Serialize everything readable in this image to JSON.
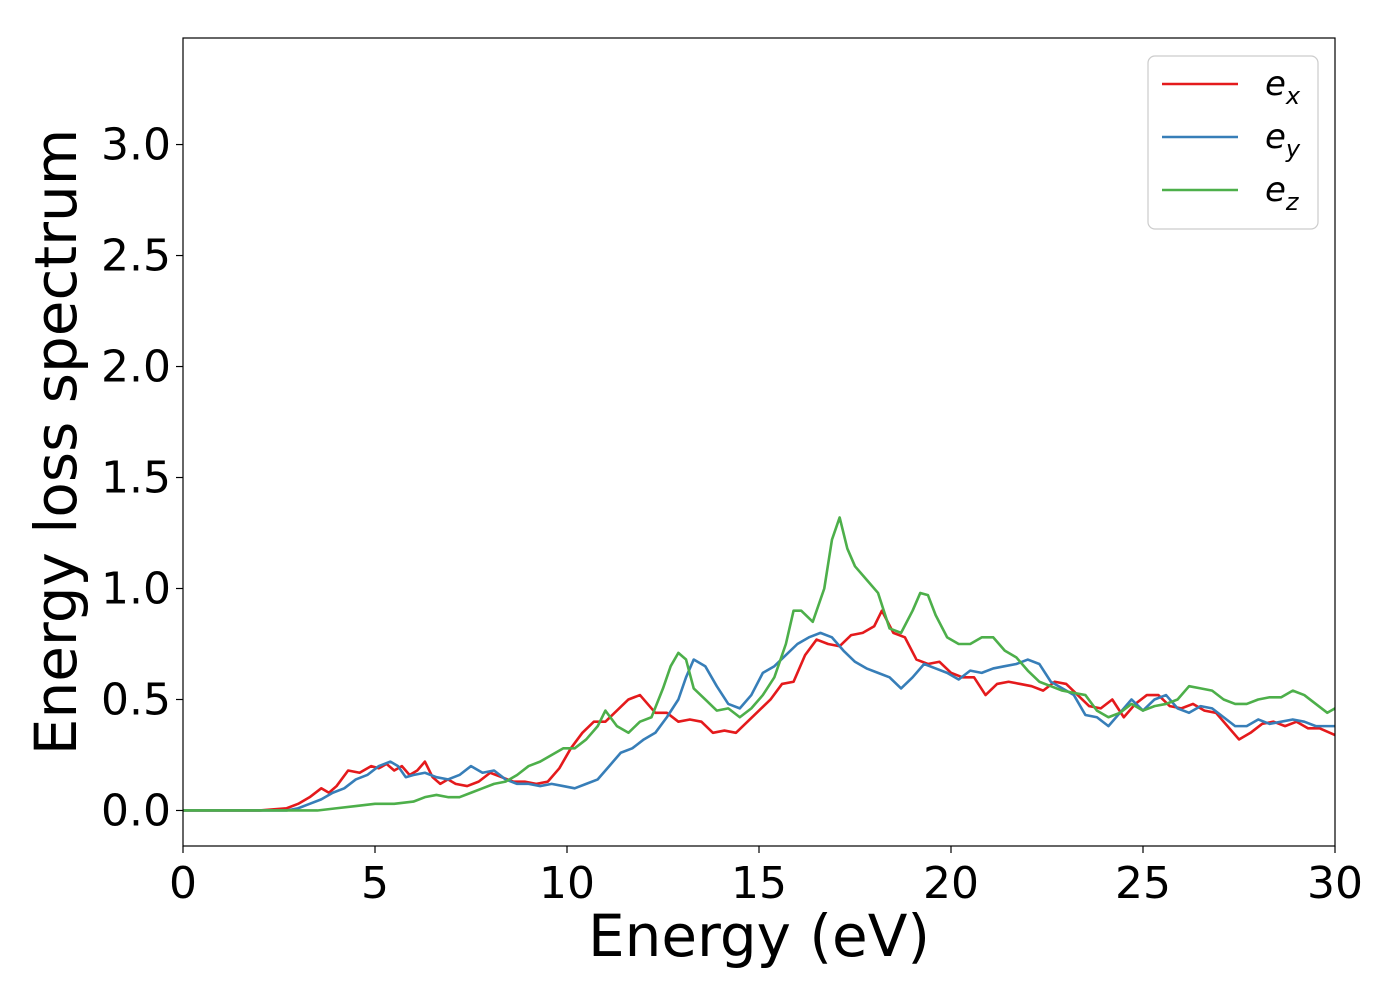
{
  "chart_data": {
    "type": "line",
    "title": "",
    "xlabel": "Energy (eV)",
    "ylabel": "Energy loss spectrum",
    "xlim": [
      0,
      30
    ],
    "ylim": [
      -0.16,
      3.48
    ],
    "xticks": [
      0,
      5,
      10,
      15,
      20,
      25,
      30
    ],
    "xtick_labels": [
      "0",
      "5",
      "10",
      "15",
      "20",
      "25",
      "30"
    ],
    "yticks": [
      0.0,
      0.5,
      1.0,
      1.5,
      2.0,
      2.5,
      3.0
    ],
    "ytick_labels": [
      "0.0",
      "0.5",
      "1.0",
      "1.5",
      "2.0",
      "2.5",
      "3.0"
    ],
    "grid": false,
    "legend_position": "top-right",
    "series": [
      {
        "name_base": "e",
        "name_sub": "x",
        "color": "#e41a1c",
        "x": [
          0,
          1,
          2,
          2.7,
          3.0,
          3.3,
          3.6,
          3.8,
          4.0,
          4.3,
          4.6,
          4.9,
          5.1,
          5.3,
          5.5,
          5.7,
          5.9,
          6.1,
          6.3,
          6.5,
          6.7,
          6.9,
          7.1,
          7.4,
          7.7,
          8.0,
          8.3,
          8.6,
          8.9,
          9.2,
          9.5,
          9.8,
          10.1,
          10.4,
          10.7,
          11.0,
          11.3,
          11.6,
          11.9,
          12.1,
          12.3,
          12.6,
          12.9,
          13.2,
          13.5,
          13.8,
          14.1,
          14.4,
          14.7,
          15.0,
          15.3,
          15.6,
          15.9,
          16.2,
          16.5,
          16.8,
          17.1,
          17.4,
          17.7,
          18.0,
          18.2,
          18.5,
          18.8,
          19.1,
          19.4,
          19.7,
          20.0,
          20.3,
          20.6,
          20.9,
          21.2,
          21.5,
          21.8,
          22.1,
          22.4,
          22.7,
          23.0,
          23.3,
          23.6,
          23.9,
          24.2,
          24.5,
          24.8,
          25.1,
          25.4,
          25.7,
          26.0,
          26.3,
          26.6,
          26.9,
          27.2,
          27.5,
          27.8,
          28.1,
          28.4,
          28.7,
          29.0,
          29.3,
          29.6,
          30.0
        ],
        "y": [
          0.0,
          0.0,
          0.0,
          0.01,
          0.03,
          0.06,
          0.1,
          0.08,
          0.11,
          0.18,
          0.17,
          0.2,
          0.19,
          0.21,
          0.18,
          0.2,
          0.16,
          0.18,
          0.22,
          0.15,
          0.12,
          0.14,
          0.12,
          0.11,
          0.13,
          0.17,
          0.15,
          0.13,
          0.13,
          0.12,
          0.13,
          0.19,
          0.28,
          0.35,
          0.4,
          0.4,
          0.45,
          0.5,
          0.52,
          0.48,
          0.44,
          0.44,
          0.4,
          0.41,
          0.4,
          0.35,
          0.36,
          0.35,
          0.4,
          0.45,
          0.5,
          0.57,
          0.58,
          0.7,
          0.77,
          0.75,
          0.74,
          0.79,
          0.8,
          0.83,
          0.9,
          0.8,
          0.78,
          0.68,
          0.66,
          0.67,
          0.62,
          0.6,
          0.6,
          0.52,
          0.57,
          0.58,
          0.57,
          0.56,
          0.54,
          0.58,
          0.57,
          0.52,
          0.47,
          0.46,
          0.5,
          0.42,
          0.48,
          0.52,
          0.52,
          0.47,
          0.46,
          0.48,
          0.45,
          0.44,
          0.38,
          0.32,
          0.35,
          0.39,
          0.4,
          0.38,
          0.4,
          0.37,
          0.37,
          0.34
        ]
      },
      {
        "name_base": "e",
        "name_sub": "y",
        "color": "#377eb8",
        "x": [
          0,
          1,
          2,
          2.7,
          3.0,
          3.3,
          3.6,
          3.9,
          4.2,
          4.5,
          4.8,
          5.1,
          5.4,
          5.6,
          5.8,
          6.0,
          6.3,
          6.6,
          6.9,
          7.2,
          7.5,
          7.8,
          8.1,
          8.4,
          8.7,
          9.0,
          9.3,
          9.6,
          9.9,
          10.2,
          10.5,
          10.8,
          11.1,
          11.4,
          11.7,
          12.0,
          12.3,
          12.6,
          12.9,
          13.1,
          13.3,
          13.6,
          13.9,
          14.2,
          14.5,
          14.8,
          15.1,
          15.4,
          15.7,
          16.0,
          16.3,
          16.6,
          16.9,
          17.2,
          17.5,
          17.8,
          18.1,
          18.4,
          18.7,
          19.0,
          19.3,
          19.6,
          19.9,
          20.2,
          20.5,
          20.8,
          21.1,
          21.4,
          21.7,
          22.0,
          22.3,
          22.6,
          22.9,
          23.2,
          23.5,
          23.8,
          24.1,
          24.4,
          24.7,
          25.0,
          25.3,
          25.6,
          25.9,
          26.2,
          26.5,
          26.8,
          27.1,
          27.4,
          27.7,
          28.0,
          28.3,
          28.6,
          28.9,
          29.2,
          29.5,
          30.0
        ],
        "y": [
          0.0,
          0.0,
          0.0,
          0.0,
          0.01,
          0.03,
          0.05,
          0.08,
          0.1,
          0.14,
          0.16,
          0.2,
          0.22,
          0.2,
          0.15,
          0.16,
          0.17,
          0.15,
          0.14,
          0.16,
          0.2,
          0.17,
          0.18,
          0.14,
          0.12,
          0.12,
          0.11,
          0.12,
          0.11,
          0.1,
          0.12,
          0.14,
          0.2,
          0.26,
          0.28,
          0.32,
          0.35,
          0.42,
          0.5,
          0.6,
          0.68,
          0.65,
          0.56,
          0.48,
          0.46,
          0.52,
          0.62,
          0.65,
          0.7,
          0.75,
          0.78,
          0.8,
          0.78,
          0.72,
          0.67,
          0.64,
          0.62,
          0.6,
          0.55,
          0.6,
          0.66,
          0.64,
          0.62,
          0.59,
          0.63,
          0.62,
          0.64,
          0.65,
          0.66,
          0.68,
          0.66,
          0.58,
          0.55,
          0.52,
          0.43,
          0.42,
          0.38,
          0.44,
          0.5,
          0.45,
          0.5,
          0.52,
          0.46,
          0.44,
          0.47,
          0.46,
          0.42,
          0.38,
          0.38,
          0.41,
          0.39,
          0.4,
          0.41,
          0.4,
          0.38,
          0.38
        ]
      },
      {
        "name_base": "e",
        "name_sub": "z",
        "color": "#4daf4a",
        "x": [
          0,
          1,
          2,
          3,
          3.5,
          4.0,
          4.5,
          5.0,
          5.5,
          6.0,
          6.3,
          6.6,
          6.9,
          7.2,
          7.5,
          7.8,
          8.1,
          8.4,
          8.7,
          9.0,
          9.3,
          9.6,
          9.9,
          10.2,
          10.5,
          10.8,
          11.0,
          11.3,
          11.6,
          11.9,
          12.2,
          12.5,
          12.7,
          12.9,
          13.1,
          13.3,
          13.6,
          13.9,
          14.2,
          14.5,
          14.8,
          15.1,
          15.4,
          15.7,
          15.9,
          16.1,
          16.4,
          16.7,
          16.9,
          17.1,
          17.3,
          17.5,
          17.8,
          18.1,
          18.4,
          18.7,
          19.0,
          19.2,
          19.4,
          19.6,
          19.9,
          20.2,
          20.5,
          20.8,
          21.1,
          21.4,
          21.7,
          22.0,
          22.3,
          22.6,
          22.9,
          23.2,
          23.5,
          23.8,
          24.1,
          24.4,
          24.7,
          25.0,
          25.3,
          25.6,
          25.9,
          26.2,
          26.5,
          26.8,
          27.1,
          27.4,
          27.7,
          28.0,
          28.3,
          28.6,
          28.9,
          29.2,
          29.5,
          29.8,
          30.0
        ],
        "y": [
          0.0,
          0.0,
          0.0,
          0.0,
          0.0,
          0.01,
          0.02,
          0.03,
          0.03,
          0.04,
          0.06,
          0.07,
          0.06,
          0.06,
          0.08,
          0.1,
          0.12,
          0.13,
          0.16,
          0.2,
          0.22,
          0.25,
          0.28,
          0.28,
          0.32,
          0.38,
          0.45,
          0.38,
          0.35,
          0.4,
          0.42,
          0.55,
          0.65,
          0.71,
          0.68,
          0.55,
          0.5,
          0.45,
          0.46,
          0.42,
          0.46,
          0.52,
          0.6,
          0.75,
          0.9,
          0.9,
          0.85,
          1.0,
          1.22,
          1.32,
          1.18,
          1.1,
          1.04,
          0.98,
          0.82,
          0.8,
          0.9,
          0.98,
          0.97,
          0.88,
          0.78,
          0.75,
          0.75,
          0.78,
          0.78,
          0.72,
          0.69,
          0.63,
          0.58,
          0.56,
          0.54,
          0.53,
          0.52,
          0.45,
          0.42,
          0.44,
          0.48,
          0.45,
          0.47,
          0.48,
          0.5,
          0.56,
          0.55,
          0.54,
          0.5,
          0.48,
          0.48,
          0.5,
          0.51,
          0.51,
          0.54,
          0.52,
          0.48,
          0.44,
          0.46
        ]
      }
    ]
  }
}
